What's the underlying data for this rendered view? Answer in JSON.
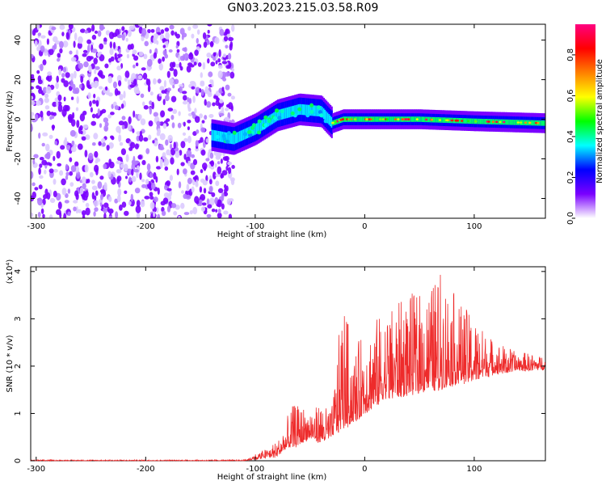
{
  "title": "GN03.2023.215.03.58.R09",
  "chart_data": [
    {
      "type": "heatmap",
      "title": "GN03.2023.215.03.58.R09",
      "xlabel": "Height of straight line (km)",
      "ylabel": "Frequency (Hz)",
      "xlim": [
        -305,
        165
      ],
      "ylim": [
        -50,
        48
      ],
      "x_ticks": [
        -300,
        -200,
        -100,
        0,
        100
      ],
      "y_ticks": [
        -40,
        -20,
        0,
        20,
        40
      ],
      "colorbar": {
        "label": "Normalized spectral amplitude",
        "range": [
          0.0,
          0.95
        ],
        "ticks": [
          0.0,
          0.2,
          0.4,
          0.6,
          0.8
        ],
        "colormap": [
          "#ffffff",
          "#7a00ff",
          "#0000ff",
          "#00ffff",
          "#00ff00",
          "#ffff00",
          "#ff8000",
          "#ff0000",
          "#ff0080"
        ]
      },
      "regions": [
        {
          "x": [
            -305,
            -120
          ],
          "y": [
            -50,
            48
          ],
          "amplitude": 0.15,
          "pattern": "noise"
        },
        {
          "x": [
            -140,
            -100
          ],
          "y": [
            -15,
            0
          ],
          "amplitude": 0.35
        },
        {
          "x": [
            -100,
            -40
          ],
          "y": [
            -5,
            10
          ],
          "amplitude": 0.4
        },
        {
          "x": [
            -40,
            165
          ],
          "y": [
            -3,
            3
          ],
          "amplitude": 0.45
        }
      ],
      "signal_trace": {
        "x": [
          -140,
          -120,
          -100,
          -80,
          -60,
          -40,
          -30,
          -20,
          0,
          50,
          100,
          165
        ],
        "freq": [
          -8,
          -10,
          -5,
          2,
          5,
          4,
          -2,
          0,
          0,
          0,
          -1,
          -2
        ]
      },
      "grid": false
    },
    {
      "type": "line",
      "xlabel": "Height of straight line (km)",
      "ylabel": "SNR (10 * v/v)",
      "y_multiplier": "(x10⁴)",
      "xlim": [
        -305,
        165
      ],
      "ylim": [
        0,
        4.1
      ],
      "x_ticks": [
        -300,
        -200,
        -100,
        0,
        100
      ],
      "y_ticks": [
        0,
        1,
        2,
        3,
        4
      ],
      "color": "#ee2b2b",
      "envelope": {
        "x": [
          -305,
          -110,
          -100,
          -80,
          -65,
          -50,
          -40,
          -30,
          -20,
          -10,
          0,
          20,
          40,
          60,
          70,
          80,
          100,
          120,
          140,
          165
        ],
        "baseline": [
          0.0,
          0.0,
          0.03,
          0.1,
          0.3,
          0.45,
          0.4,
          0.5,
          0.7,
          0.8,
          1.0,
          1.3,
          1.4,
          1.5,
          1.5,
          1.6,
          1.7,
          1.85,
          1.9,
          1.95
        ],
        "peak": [
          0.02,
          0.02,
          0.12,
          0.4,
          1.2,
          1.1,
          1.2,
          1.1,
          3.5,
          2.3,
          2.8,
          3.2,
          3.5,
          3.7,
          4.05,
          3.6,
          3.0,
          2.5,
          2.3,
          2.2
        ]
      },
      "grid": false
    }
  ]
}
